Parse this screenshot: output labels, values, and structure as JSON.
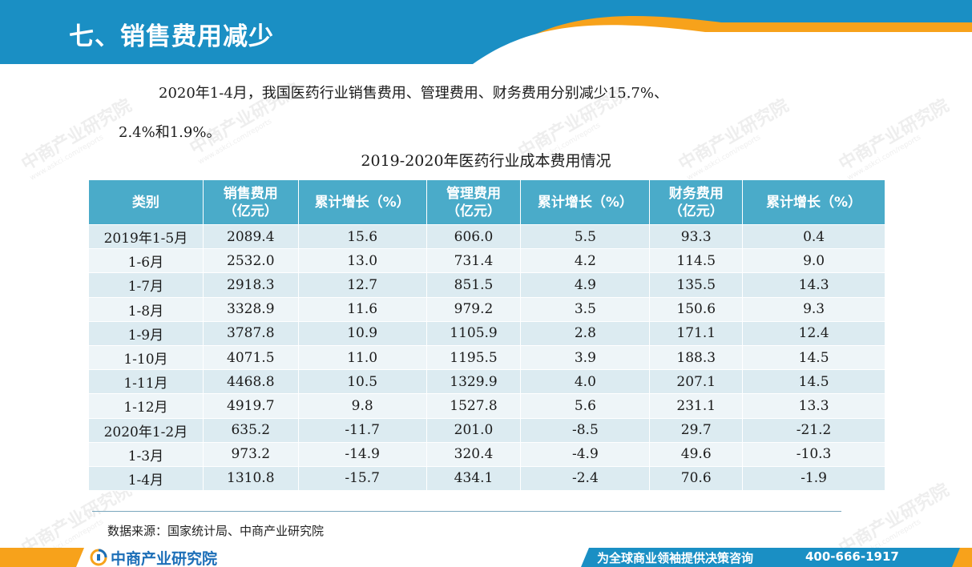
{
  "header": {
    "title": "七、销售费用减少"
  },
  "intro": {
    "line1": "2020年1-4月，我国医药行业销售费用、管理费用、财务费用分别减少15.7%、",
    "line2": "2.4%和1.9%。"
  },
  "table": {
    "title": "2019-2020年医药行业成本费用情况",
    "headers": [
      [
        "类别",
        ""
      ],
      [
        "销售费用",
        "（亿元）"
      ],
      [
        "累计增长（%）",
        ""
      ],
      [
        "管理费用",
        "（亿元）"
      ],
      [
        "累计增长（%）",
        ""
      ],
      [
        "财务费用",
        "（亿元）"
      ],
      [
        "累计增长（%）",
        ""
      ]
    ],
    "rows": [
      [
        "2019年1-5月",
        "2089.4",
        "15.6",
        "606.0",
        "5.5",
        "93.3",
        "0.4"
      ],
      [
        "1-6月",
        "2532.0",
        "13.0",
        "731.4",
        "4.2",
        "114.5",
        "9.0"
      ],
      [
        "1-7月",
        "2918.3",
        "12.7",
        "851.5",
        "4.9",
        "135.5",
        "14.3"
      ],
      [
        "1-8月",
        "3328.9",
        "11.6",
        "979.2",
        "3.5",
        "150.6",
        "9.3"
      ],
      [
        "1-9月",
        "3787.8",
        "10.9",
        "1105.9",
        "2.8",
        "171.1",
        "12.4"
      ],
      [
        "1-10月",
        "4071.5",
        "11.0",
        "1195.5",
        "3.9",
        "188.3",
        "14.5"
      ],
      [
        "1-11月",
        "4468.8",
        "10.5",
        "1329.9",
        "4.0",
        "207.1",
        "14.5"
      ],
      [
        "1-12月",
        "4919.7",
        "9.8",
        "1527.8",
        "5.6",
        "231.1",
        "13.3"
      ],
      [
        "2020年1-2月",
        "635.2",
        "-11.7",
        "201.0",
        "-8.5",
        "29.7",
        "-21.2"
      ],
      [
        "1-3月",
        "973.2",
        "-14.9",
        "320.4",
        "-4.9",
        "49.6",
        "-10.3"
      ],
      [
        "1-4月",
        "1310.8",
        "-15.7",
        "434.1",
        "-2.4",
        "70.6",
        "-1.9"
      ]
    ]
  },
  "source": "数据来源：国家统计局、中商产业研究院",
  "footer": {
    "logo_text": "中商产业研究院",
    "slogan": "为全球商业领袖提供决策咨询",
    "phone": "400-666-1917"
  },
  "watermark": {
    "text": "中商产业研究院",
    "url": "www.askci.com/reports"
  },
  "colors": {
    "header_blue": "#1a8fc4",
    "accent_orange": "#f7a21b",
    "table_header": "#4aabc9"
  }
}
